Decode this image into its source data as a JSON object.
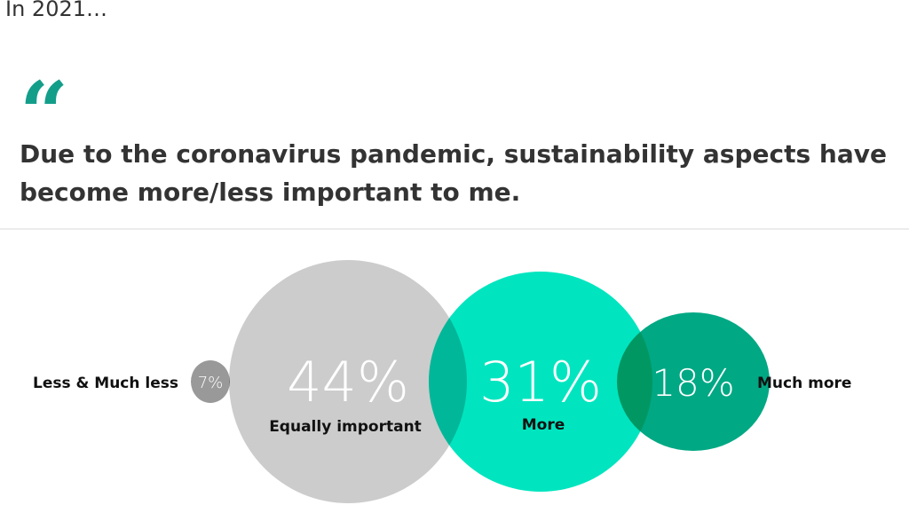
{
  "heading": "In 2021…",
  "quote_icon": "opening-quote-icon",
  "statement": "Due to the coronavirus pandemic, sustainability aspects have become more/less important to me.",
  "chart_data": {
    "type": "bubble",
    "categories": [
      "Less & Much less",
      "Equally important",
      "More",
      "Much more"
    ],
    "values": [
      7,
      44,
      31,
      18
    ],
    "value_labels": [
      "7%",
      "44%",
      "31%",
      "18%"
    ],
    "colors": [
      "#999999",
      "#cccccc",
      "#00e5bf",
      "#00a884"
    ]
  }
}
